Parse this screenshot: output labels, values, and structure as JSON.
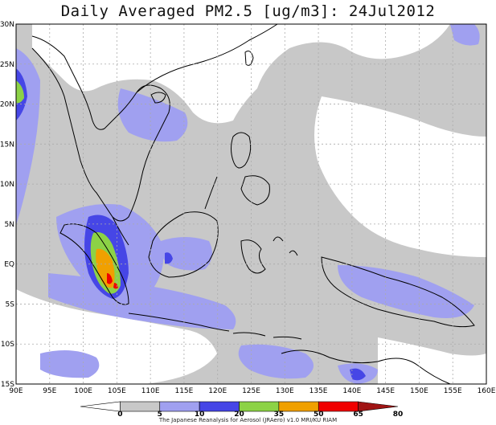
{
  "title": "Daily Averaged PM2.5 [ug/m3]: 24Jul2012",
  "axes": {
    "lon_labels": [
      "90E",
      "95E",
      "100E",
      "105E",
      "110E",
      "115E",
      "120E",
      "125E",
      "130E",
      "135E",
      "140E",
      "145E",
      "150E",
      "155E",
      "160E"
    ],
    "lat_labels": [
      "30N",
      "25N",
      "20N",
      "15N",
      "10N",
      "5N",
      "EQ",
      "5S",
      "10S",
      "15S"
    ]
  },
  "grid": "dotted",
  "colorbar": {
    "levels": [
      "0",
      "5",
      "10",
      "20",
      "35",
      "50",
      "65",
      "80"
    ],
    "colors": [
      "#ffffff",
      "#c8c8c8",
      "#a0a0f0",
      "#4646e6",
      "#8cd246",
      "#f0a000",
      "#f00000",
      "#a01414"
    ]
  },
  "credit": "The Japanese Reanalysis for Aerosol (JRAero) v1.0 MRI/KU RIAM",
  "colors": {
    "ocean": "#ffffff",
    "coastline": "#000000",
    "grid": "#aaaaaa"
  }
}
